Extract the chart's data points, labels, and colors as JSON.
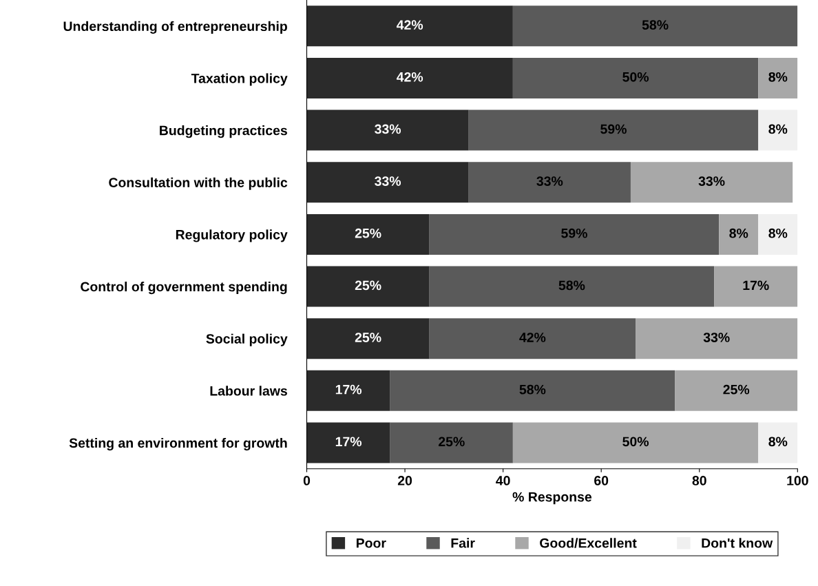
{
  "chart_data": {
    "type": "bar",
    "orientation": "horizontal",
    "stacked": true,
    "xlabel": "% Response",
    "categories": [
      "Understanding of entrepreneurship",
      "Taxation policy",
      "Budgeting practices",
      "Consultation with the public",
      "Regulatory policy",
      "Control of government spending",
      "Social policy",
      "Labour laws",
      "Setting an environment for growth"
    ],
    "series": [
      {
        "name": "Poor",
        "color": "#2b2b2b",
        "values": [
          42,
          42,
          33,
          33,
          25,
          25,
          25,
          17,
          17
        ],
        "value_labels": [
          "42%",
          "42%",
          "33%",
          "33%",
          "25%",
          "25%",
          "25%",
          "17%",
          "17%"
        ]
      },
      {
        "name": "Fair",
        "color": "#5a5a5a",
        "values": [
          58,
          50,
          59,
          33,
          59,
          58,
          42,
          58,
          25
        ],
        "value_labels": [
          "58%",
          "50%",
          "59%",
          "33%",
          "59%",
          "58%",
          "42%",
          "58%",
          "25%"
        ]
      },
      {
        "name": "Good/Excellent",
        "color": "#a8a8a8",
        "values": [
          null,
          8,
          null,
          33,
          8,
          17,
          33,
          25,
          50
        ],
        "value_labels": [
          null,
          "8%",
          null,
          "33%",
          "8%",
          "17%",
          "33%",
          "25%",
          "50%"
        ]
      },
      {
        "name": "Don't know",
        "color": "#f0f0f0",
        "values": [
          null,
          null,
          8,
          null,
          8,
          null,
          null,
          null,
          8
        ],
        "value_labels": [
          null,
          null,
          "8%",
          null,
          "8%",
          null,
          null,
          null,
          "8%"
        ]
      }
    ],
    "xlim": [
      0,
      100
    ],
    "xticks": [
      0,
      20,
      40,
      60,
      80,
      100
    ],
    "grid": false,
    "legend": "bottom"
  }
}
